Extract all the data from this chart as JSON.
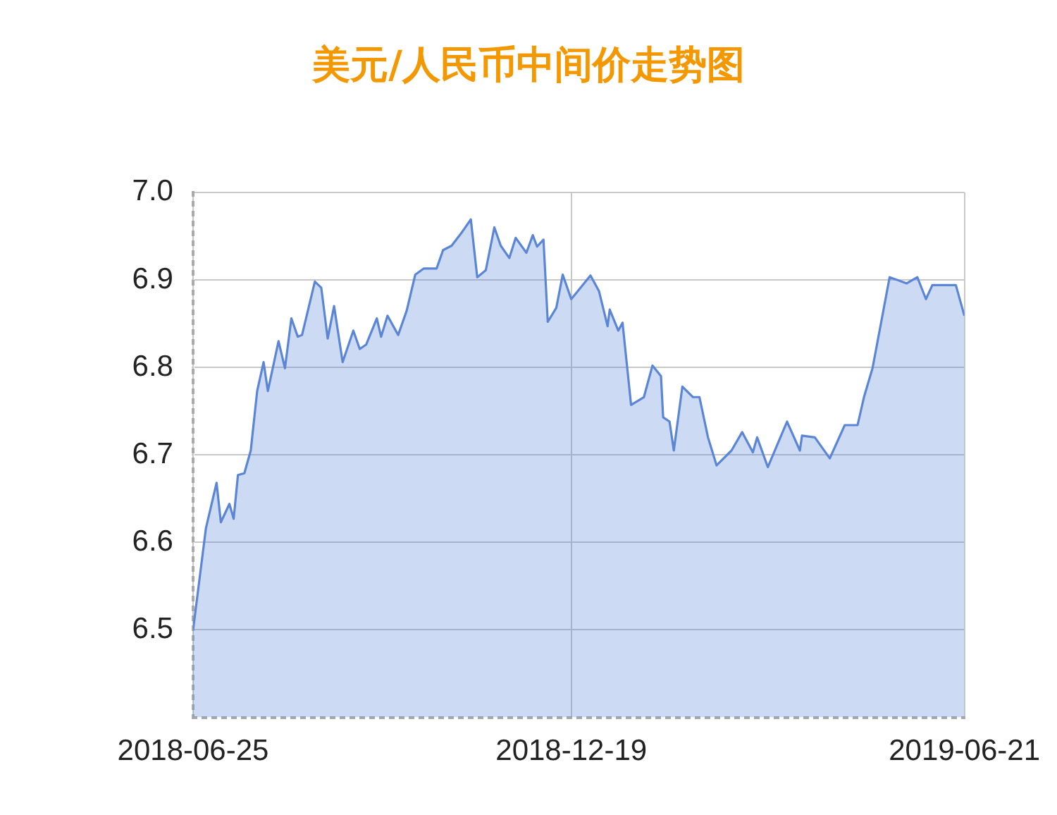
{
  "chart_data": {
    "type": "area",
    "title": "美元/人民币中间价走势图",
    "x": [
      "2018-06-25",
      "2018-07-01",
      "2018-07-06",
      "2018-07-08",
      "2018-07-12",
      "2018-07-14",
      "2018-07-16",
      "2018-07-19",
      "2018-07-22",
      "2018-07-25",
      "2018-07-28",
      "2018-07-30",
      "2018-08-04",
      "2018-08-07",
      "2018-08-10",
      "2018-08-13",
      "2018-08-15",
      "2018-08-21",
      "2018-08-24",
      "2018-08-27",
      "2018-08-30",
      "2018-09-03",
      "2018-09-08",
      "2018-09-11",
      "2018-09-14",
      "2018-09-19",
      "2018-09-21",
      "2018-09-24",
      "2018-09-29",
      "2018-10-03",
      "2018-10-07",
      "2018-10-11",
      "2018-10-17",
      "2018-10-20",
      "2018-10-24",
      "2018-10-29",
      "2018-11-02",
      "2018-11-05",
      "2018-11-09",
      "2018-11-13",
      "2018-11-16",
      "2018-11-20",
      "2018-11-23",
      "2018-11-28",
      "2018-12-01",
      "2018-12-03",
      "2018-12-06",
      "2018-12-08",
      "2018-12-12",
      "2018-12-15",
      "2018-12-19",
      "2018-12-28",
      "2019-01-01",
      "2019-01-05",
      "2019-01-06",
      "2019-01-10",
      "2019-01-12",
      "2019-01-16",
      "2019-01-22",
      "2019-01-26",
      "2019-01-30",
      "2019-01-31",
      "2019-02-03",
      "2019-02-05",
      "2019-02-09",
      "2019-02-14",
      "2019-02-17",
      "2019-02-21",
      "2019-02-25",
      "2019-03-04",
      "2019-03-09",
      "2019-03-14",
      "2019-03-16",
      "2019-03-21",
      "2019-03-26",
      "2019-03-30",
      "2019-04-05",
      "2019-04-06",
      "2019-04-12",
      "2019-04-19",
      "2019-04-26",
      "2019-05-02",
      "2019-05-05",
      "2019-05-09",
      "2019-05-17",
      "2019-05-25",
      "2019-05-30",
      "2019-06-03",
      "2019-06-06",
      "2019-06-17",
      "2019-06-21"
    ],
    "series": [
      {
        "color": "#5b86d6",
        "values": [
          6.5,
          6.616,
          6.668,
          6.623,
          6.644,
          6.627,
          6.677,
          6.679,
          6.705,
          6.773,
          6.806,
          6.773,
          6.83,
          6.799,
          6.856,
          6.835,
          6.837,
          6.898,
          6.891,
          6.833,
          6.87,
          6.806,
          6.842,
          6.821,
          6.826,
          6.856,
          6.835,
          6.859,
          6.837,
          6.865,
          6.906,
          6.913,
          6.913,
          6.934,
          6.939,
          6.955,
          6.969,
          6.903,
          6.911,
          6.96,
          6.939,
          6.925,
          6.948,
          6.931,
          6.951,
          6.938,
          6.946,
          6.852,
          6.868,
          6.906,
          6.878,
          6.905,
          6.887,
          6.847,
          6.866,
          6.842,
          6.851,
          6.757,
          6.766,
          6.802,
          6.79,
          6.743,
          6.738,
          6.705,
          6.778,
          6.766,
          6.766,
          6.72,
          6.688,
          6.705,
          6.726,
          6.703,
          6.72,
          6.686,
          6.715,
          6.738,
          6.705,
          6.722,
          6.72,
          6.696,
          6.734,
          6.734,
          6.766,
          6.799,
          6.903,
          6.896,
          6.903,
          6.878,
          6.894,
          6.894,
          6.859
        ]
      }
    ],
    "xlim": [
      "2018-06-25",
      "2019-06-21"
    ],
    "xticks": [
      "2018-06-25",
      "2018-12-19",
      "2019-06-21"
    ],
    "ylim": [
      6.4,
      7.0
    ],
    "yticks": [
      6.5,
      6.6,
      6.7,
      6.8,
      6.9,
      {
        "value": 7.0,
        "label": "7.0"
      }
    ],
    "grid": true,
    "marker": "none",
    "line_style": "solid"
  }
}
